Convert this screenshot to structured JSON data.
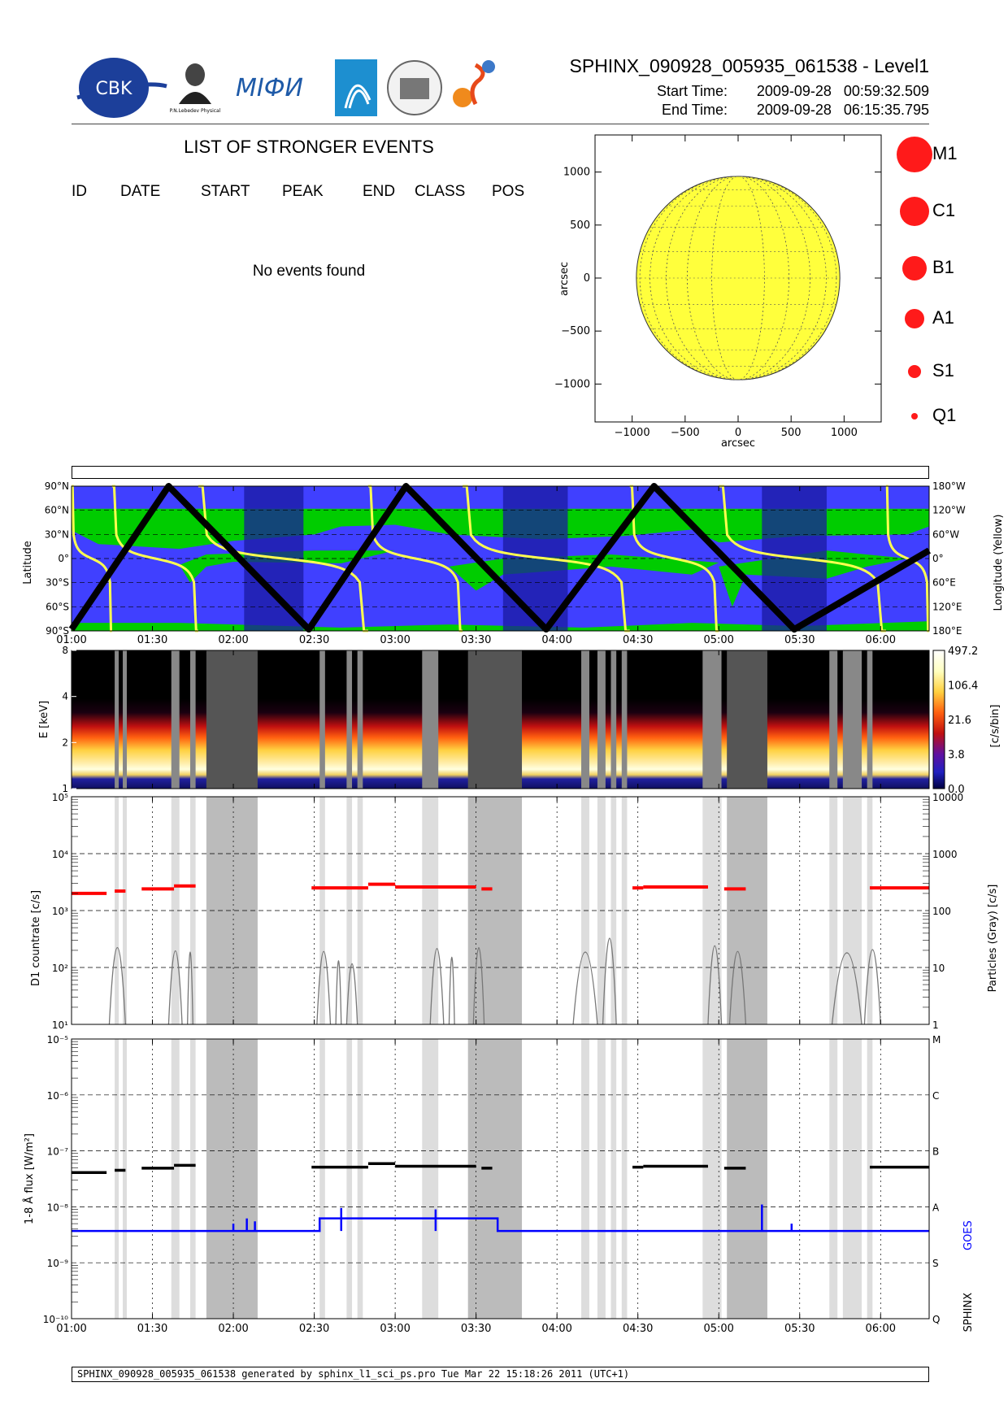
{
  "header": {
    "title": "SPHINX_090928_005935_061538 - Level1",
    "start_label": "Start Time:",
    "start_value": "2009-09-28   00:59:32.509",
    "end_label": "End Time:",
    "end_value": "2009-09-28   06:15:35.795",
    "logos": [
      "CBK",
      "P.N.Lebedev Physical Institute of the Russian Academy of Science",
      "MIFI",
      "instrument-logo",
      "university-seal",
      "sphinx-logo"
    ]
  },
  "events": {
    "title": "LIST OF STRONGER EVENTS",
    "columns": [
      "ID",
      "DATE",
      "START",
      "PEAK",
      "END",
      "CLASS",
      "POS"
    ],
    "empty_text": "No events found"
  },
  "sun_map": {
    "xlabel": "arcsec",
    "ylabel": "arcsec",
    "xticks": [
      "-1000",
      "-500",
      "0",
      "500",
      "1000"
    ],
    "yticks": [
      "1000",
      "500",
      "0",
      "-500",
      "-1000"
    ],
    "disk_color": "#ffff3c",
    "radius_arcsec": 960
  },
  "class_legend": [
    {
      "label": "M1",
      "rel_size": 1.0
    },
    {
      "label": "C1",
      "rel_size": 0.83
    },
    {
      "label": "B1",
      "rel_size": 0.7
    },
    {
      "label": "A1",
      "rel_size": 0.56
    },
    {
      "label": "S1",
      "rel_size": 0.38
    },
    {
      "label": "Q1",
      "rel_size": 0.2
    }
  ],
  "time_axis": {
    "start_minutes": 60,
    "end_minutes": 378,
    "tick_labels": [
      "01:00",
      "01:30",
      "02:00",
      "02:30",
      "03:00",
      "03:30",
      "04:00",
      "04:30",
      "05:00",
      "05:30",
      "06:00"
    ],
    "tick_minutes": [
      60,
      90,
      120,
      150,
      180,
      210,
      240,
      270,
      300,
      330,
      360
    ]
  },
  "orbit_panel": {
    "ylabel_left": "Latitude",
    "ylabel_right": "Longitude (Yellow)",
    "lat_ticks": [
      "90°N",
      "60°N",
      "30°N",
      "0°",
      "30°S",
      "60°S",
      "90°S"
    ],
    "lon_ticks": [
      "180°W",
      "120°W",
      "60°W",
      "0°",
      "60°E",
      "120°E",
      "180°E"
    ],
    "colors": {
      "background": "#4040ff",
      "green": "#00cc00",
      "night": "#1a1aa0",
      "track": "#000000",
      "longitude": "#ffff50"
    },
    "night_intervals": [
      [
        124,
        146
      ],
      [
        220,
        244
      ],
      [
        316,
        340
      ]
    ],
    "latitude_turns": [
      [
        60,
        -88
      ],
      [
        96,
        90
      ],
      [
        148,
        -88
      ],
      [
        184,
        90
      ],
      [
        236,
        -88
      ],
      [
        276,
        90
      ],
      [
        328,
        -88
      ],
      [
        378,
        10
      ]
    ]
  },
  "spectrogram": {
    "ylabel": "E [keV]",
    "yticks": [
      "1",
      "2",
      "4",
      "8"
    ],
    "colorbar_label": "[c/s/bin]",
    "colorbar_ticks": [
      "497.2",
      "106.4",
      "21.6",
      "3.8",
      "0.0"
    ]
  },
  "countrate_panel": {
    "ylabel_left": "D1 countrate [c/s]",
    "ylabel_right": "Particles (Gray) [c/s]",
    "left_ticks": [
      "10¹",
      "10²",
      "10³",
      "10⁴",
      "10⁵"
    ],
    "right_ticks": [
      "1",
      "10",
      "100",
      "1000",
      "10000"
    ],
    "red_level_intervals": [
      [
        60,
        73,
        2000
      ],
      [
        76,
        80,
        2200
      ],
      [
        86,
        98,
        2400
      ],
      [
        98,
        106,
        2700
      ],
      [
        149,
        170,
        2500
      ],
      [
        170,
        180,
        2900
      ],
      [
        180,
        210,
        2600
      ],
      [
        212,
        216,
        2400
      ],
      [
        268,
        272,
        2500
      ],
      [
        272,
        296,
        2600
      ],
      [
        302,
        310,
        2400
      ],
      [
        356,
        378,
        2500
      ]
    ]
  },
  "flux_panel": {
    "ylabel_left": "1-8 Å flux [W/m²]",
    "ylabel_right_a": "SPHINX",
    "ylabel_right_b": "GOES",
    "left_ticks": [
      "10⁻¹⁰",
      "10⁻⁹",
      "10⁻⁸",
      "10⁻⁷",
      "10⁻⁶",
      "10⁻⁵"
    ],
    "class_ticks": [
      "Q",
      "S",
      "A",
      "B",
      "C",
      "M"
    ],
    "sphinx_color": "#000000",
    "goes_color": "#0000ff",
    "goes_segments": [
      [
        60,
        152,
        3.7e-09
      ],
      [
        152,
        157,
        6.2e-09
      ],
      [
        157,
        218,
        6.2e-09
      ],
      [
        218,
        270,
        3.7e-09
      ],
      [
        270,
        378,
        3.7e-09
      ]
    ]
  },
  "gap_bands": {
    "light": [
      [
        76,
        77.5
      ],
      [
        79,
        80.5
      ],
      [
        97,
        100
      ],
      [
        104,
        106
      ],
      [
        152,
        154
      ],
      [
        162,
        164
      ],
      [
        166,
        168
      ],
      [
        190,
        196
      ],
      [
        210,
        212
      ],
      [
        214,
        216
      ],
      [
        249,
        252
      ],
      [
        255,
        258
      ],
      [
        260,
        262
      ],
      [
        264,
        266
      ],
      [
        294,
        301
      ],
      [
        304,
        306
      ],
      [
        309,
        311
      ],
      [
        341,
        344
      ],
      [
        346,
        353
      ],
      [
        355,
        357
      ]
    ],
    "dark": [
      [
        107,
        122
      ],
      [
        169,
        187
      ],
      [
        216,
        231
      ],
      [
        309,
        324
      ]
    ],
    "mid": [
      [
        110,
        129
      ],
      [
        207,
        227
      ],
      [
        303,
        318
      ]
    ]
  },
  "footer": {
    "text": "SPHINX_090928_005935_061538 generated by sphinx_l1_sci_ps.pro Tue Mar 22 15:18:26 2011 (UTC+1)"
  },
  "chart_data": [
    {
      "type": "scatter",
      "title": "",
      "xlabel": "arcsec",
      "ylabel": "arcsec",
      "xlim": [
        -1350,
        1350
      ],
      "ylim": [
        -1350,
        1350
      ],
      "grid": true,
      "series": []
    },
    {
      "type": "line",
      "xlabel": "",
      "ylabel": "Latitude",
      "ylabel_right": "Longitude (Yellow)",
      "x": [
        "01:00",
        "01:30",
        "02:00",
        "02:30",
        "03:00",
        "03:30",
        "04:00",
        "04:30",
        "05:00",
        "05:30",
        "06:00"
      ]
    },
    {
      "type": "heatmap",
      "ylabel": "E [keV]",
      "ylim": [
        1,
        8
      ],
      "colorbar_label": "[c/s/bin]"
    },
    {
      "type": "line",
      "ylabel": "D1 countrate [c/s]",
      "ylabel_right": "Particles (Gray) [c/s]",
      "ylim": [
        10,
        100000
      ],
      "yscale": "log"
    },
    {
      "type": "line",
      "ylabel": "1-8 Å flux [W/m²]",
      "ylim": [
        1e-10,
        1e-05
      ],
      "yscale": "log",
      "series": [
        {
          "name": "SPHINX",
          "level": 5e-08
        },
        {
          "name": "GOES",
          "level": 3.7e-09
        }
      ]
    }
  ]
}
